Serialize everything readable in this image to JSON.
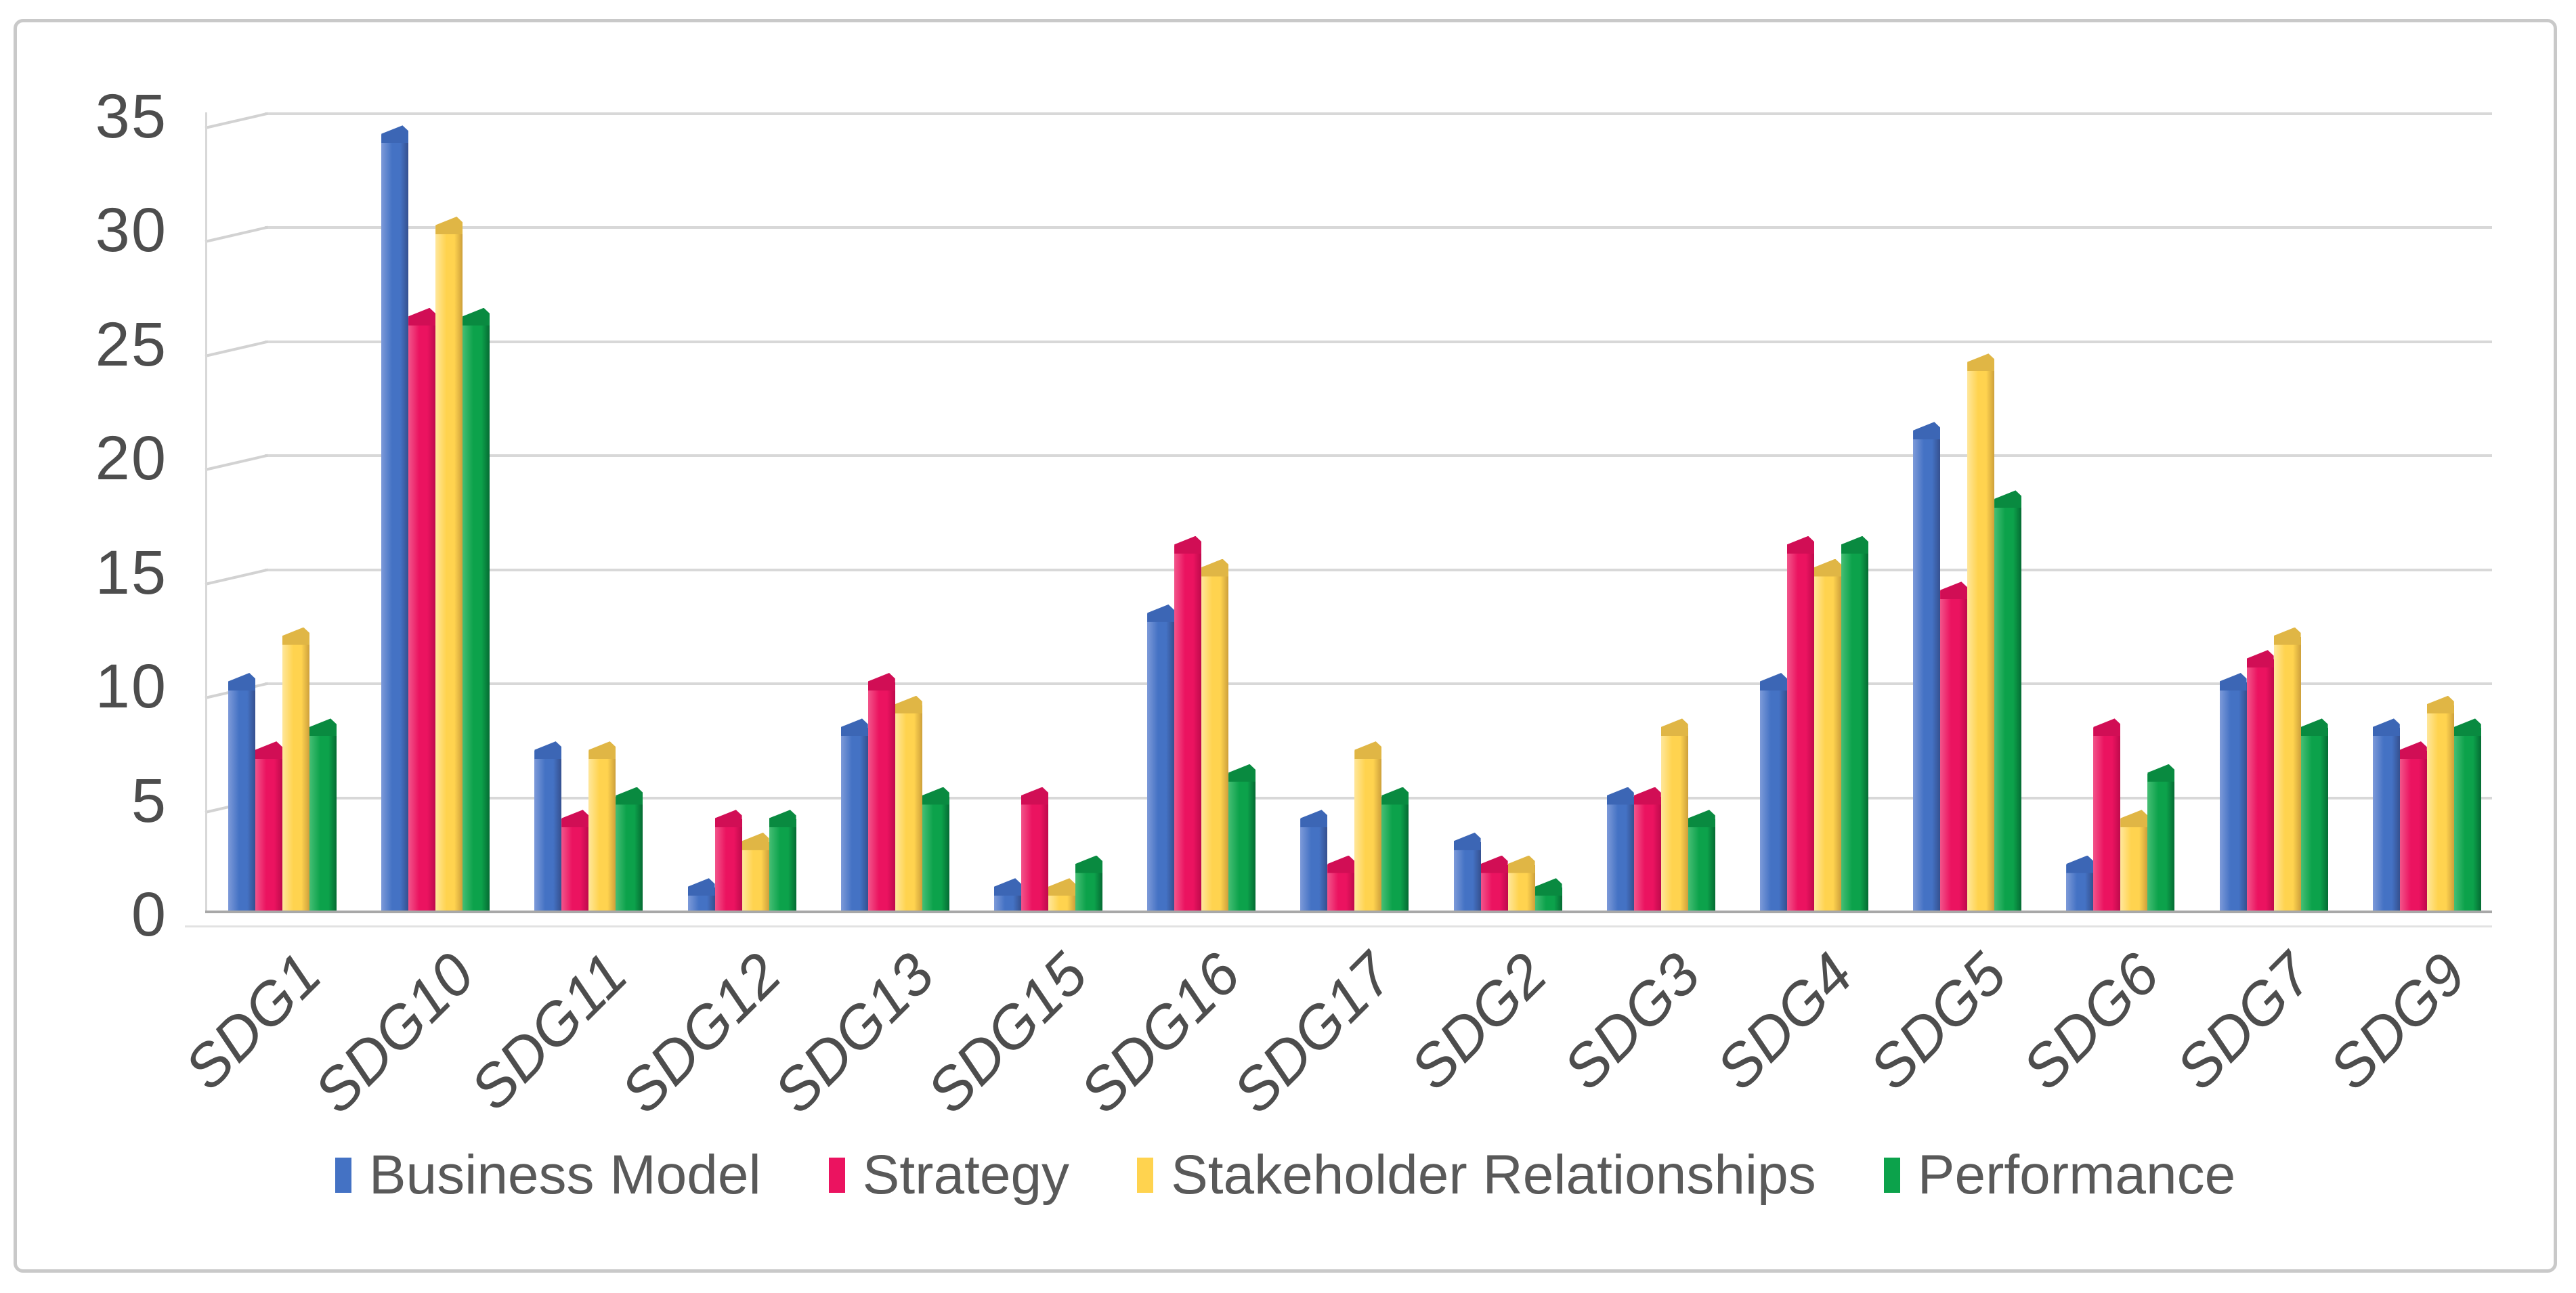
{
  "figure": {
    "background": "#ffffff",
    "frame_border_color": "#c9c9c9"
  },
  "chart_data": {
    "type": "bar",
    "style": "3d-clustered-column",
    "title": "",
    "xlabel": "",
    "ylabel": "",
    "categories": [
      "SDG1",
      "SDG10",
      "SDG11",
      "SDG12",
      "SDG13",
      "SDG15",
      "SDG16",
      "SDG17",
      "SDG2",
      "SDG3",
      "SDG4",
      "SDG5",
      "SDG6",
      "SDG7",
      "SDG9"
    ],
    "series": [
      {
        "name": "Business Model",
        "color": "#4472C4",
        "color_light": "#7D9AD9",
        "color_dark": "#35508F",
        "color_cap": "#3C66B5",
        "values": [
          10,
          34,
          7,
          1,
          8,
          1,
          13,
          4,
          3,
          5,
          10,
          21,
          2,
          10,
          8
        ]
      },
      {
        "name": "Strategy",
        "color": "#EB1360",
        "color_light": "#F2548A",
        "color_dark": "#BE0A4C",
        "color_cap": "#D10E55",
        "values": [
          7,
          26,
          4,
          4,
          10,
          5,
          16,
          2,
          2,
          5,
          16,
          14,
          8,
          11,
          7
        ]
      },
      {
        "name": "Stakeholder Relationships",
        "color": "#FFD34F",
        "color_light": "#FFE79B",
        "color_dark": "#CDA03B",
        "color_cap": "#E0B645",
        "values": [
          12,
          30,
          7,
          3,
          9,
          1,
          15,
          7,
          2,
          8,
          15,
          24,
          4,
          12,
          9
        ]
      },
      {
        "name": "Performance",
        "color": "#0CA24B",
        "color_light": "#45BE74",
        "color_dark": "#056B33",
        "color_cap": "#098A40",
        "values": [
          8,
          26,
          5,
          4,
          5,
          2,
          6,
          5,
          1,
          4,
          16,
          18,
          6,
          8,
          8
        ]
      }
    ],
    "ylim": [
      0,
      35
    ],
    "ytick_interval": 5,
    "yticks": [
      "0",
      "5",
      "10",
      "15",
      "20",
      "25",
      "30",
      "35"
    ],
    "grid": true,
    "legend_position": "bottom",
    "axis_text_color": "#4d4d4d",
    "gridline_color": "#d8d8d8",
    "axis_line_color": "#a8a8a8"
  }
}
